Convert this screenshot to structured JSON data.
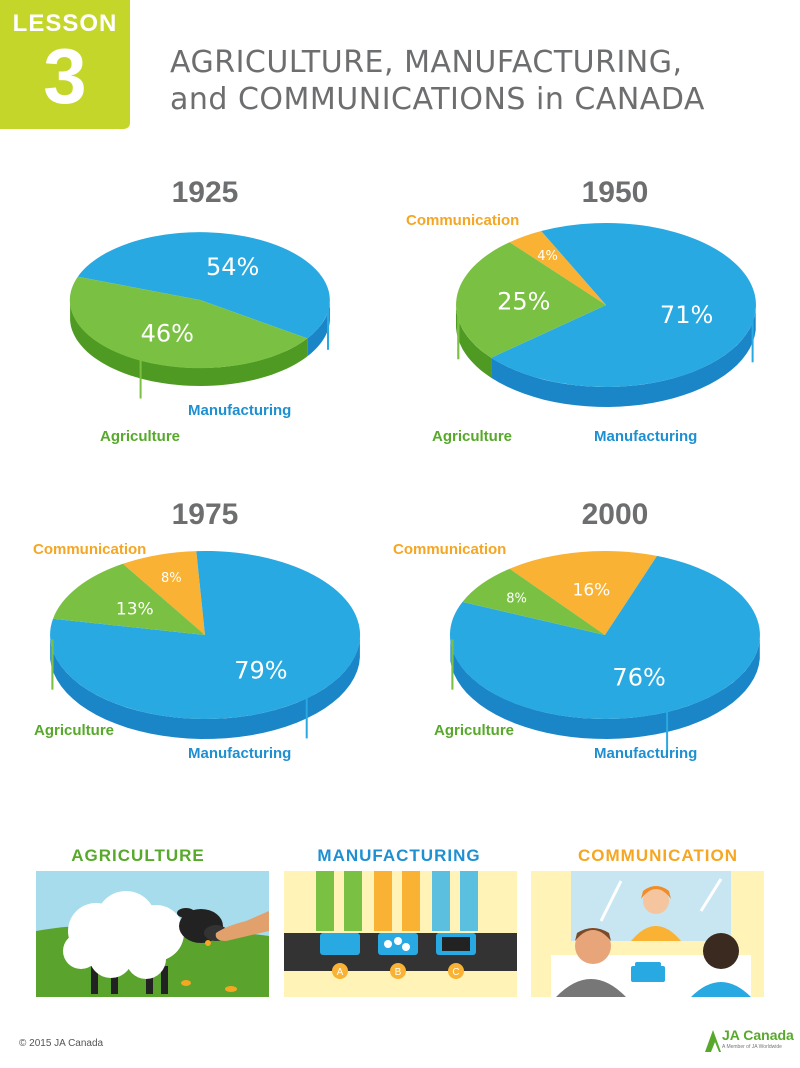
{
  "header": {
    "lesson_word": "LESSON",
    "lesson_number": "3",
    "title_line1": "AGRICULTURE, MANUFACTURING,",
    "title_line2": "and COMMUNICATIONS in CANADA"
  },
  "colors": {
    "agriculture": "#7ac143",
    "manufacturing": "#29a9e1",
    "communication": "#f9b233",
    "lesson_tab": "#c5d62a"
  },
  "chart_data": [
    {
      "type": "pie",
      "title": "1925",
      "slices": [
        {
          "name": "Manufacturing",
          "value": 54,
          "label": "54%"
        },
        {
          "name": "Agriculture",
          "value": 46,
          "label": "46%"
        }
      ]
    },
    {
      "type": "pie",
      "title": "1950",
      "slices": [
        {
          "name": "Manufacturing",
          "value": 71,
          "label": "71%"
        },
        {
          "name": "Agriculture",
          "value": 25,
          "label": "25%"
        },
        {
          "name": "Communication",
          "value": 4,
          "label": "4%"
        }
      ]
    },
    {
      "type": "pie",
      "title": "1975",
      "slices": [
        {
          "name": "Manufacturing",
          "value": 79,
          "label": "79%"
        },
        {
          "name": "Agriculture",
          "value": 13,
          "label": "13%"
        },
        {
          "name": "Communication",
          "value": 8,
          "label": "8%"
        }
      ]
    },
    {
      "type": "pie",
      "title": "2000",
      "slices": [
        {
          "name": "Manufacturing",
          "value": 76,
          "label": "76%"
        },
        {
          "name": "Agriculture",
          "value": 8,
          "label": "8%"
        },
        {
          "name": "Communication",
          "value": 16,
          "label": "16%"
        }
      ]
    }
  ],
  "sections": {
    "agriculture": "AGRICULTURE",
    "manufacturing": "MANUFACTURING",
    "communication": "COMMUNICATION"
  },
  "machine_labels": [
    "A",
    "B",
    "C"
  ],
  "footer": {
    "copyright": "© 2015 JA Canada",
    "logo_text": "JA Canada",
    "logo_sub": "A Member of JA Worldwide"
  }
}
